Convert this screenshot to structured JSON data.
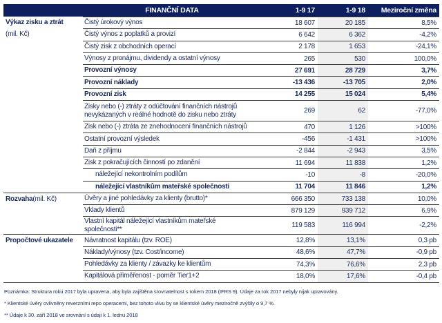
{
  "header": {
    "title": "FINANČNÍ DATA",
    "col1": "1-9 17",
    "col2": "1-9 18",
    "col3": "Meziroční změna"
  },
  "sections": [
    {
      "label": "Výkaz zisku a ztrát",
      "sublabel": "(mil. Kč)",
      "rows": [
        {
          "desc": "Čistý úrokový výnos",
          "v1": "18 607",
          "v2": "20 185",
          "v3": "8,5%"
        },
        {
          "desc": "Čistý výnos z poplatků a provizí",
          "v1": "6 642",
          "v2": "6 362",
          "v3": "-4,2%"
        },
        {
          "desc": "Čistý zisk z obchodních operací",
          "v1": "2 178",
          "v2": "1 653",
          "v3": "-24,1%"
        },
        {
          "desc": "Výnosy z pronájmu, dividendy a ostatní výnosy",
          "v1": "265",
          "v2": "530",
          "v3": "100,0%"
        },
        {
          "desc": "Provozní výnosy",
          "v1": "27 691",
          "v2": "28 729",
          "v3": "3,7%",
          "bold": true
        },
        {
          "desc": "Provozní náklady",
          "v1": "-13 436",
          "v2": "-13 705",
          "v3": "2,0%",
          "bold": true
        },
        {
          "desc": "Provozní zisk",
          "v1": "14 255",
          "v2": "15 024",
          "v3": "5,4%",
          "bold": true
        },
        {
          "desc": "Zisky nebo (-) ztráty z odúčtování finančních nástrojů\nnevykázaných v reálné hodnotě do zisku nebo ztráty",
          "v1": "269",
          "v2": "62",
          "v3": "-77,0%"
        },
        {
          "desc": "Zisk nebo (-) ztráta ze znehodnocení finančních nástrojů",
          "v1": "470",
          "v2": "1 126",
          "v3": ">100%"
        },
        {
          "desc": "Ostatní provozní výsledek",
          "v1": "-456",
          "v2": "-1 431",
          "v3": ">100%"
        },
        {
          "desc": "Daň z příjmu",
          "v1": "-2 844",
          "v2": "-2 943",
          "v3": "3,5%"
        },
        {
          "desc": "Zisk z pokračujících činností po zdanění",
          "v1": "11 694",
          "v2": "11 838",
          "v3": "1,2%"
        },
        {
          "desc": "náležející nekontrolním podílům",
          "v1": "-10",
          "v2": "-8",
          "v3": "-20,0%",
          "indent": true
        },
        {
          "desc": "náležející vlastníkům mateřské společnosti",
          "v1": "11 704",
          "v2": "11 846",
          "v3": "1,2%",
          "indent": true,
          "bold": true
        }
      ]
    },
    {
      "label": "Rozvaha",
      "label_suffix": " (mil. Kč)",
      "rows": [
        {
          "desc": "Úvěry a jiné pohledávky za klienty (brutto)*",
          "v1": "666 350",
          "v2": "733 138",
          "v3": "10,0%"
        },
        {
          "desc": "Vklady klientů",
          "v1": "879 129",
          "v2": "939 712",
          "v3": "6,9%"
        },
        {
          "desc": "Vlastní kapitál náležející vlastníkům mateřské\nspolečnosti**",
          "v1": "119 583",
          "v2": "116 994",
          "v3": "-2,2%"
        }
      ]
    },
    {
      "label": "Propočtové ukazatele",
      "rows": [
        {
          "desc": "Návratnost kapitálu (tzv. ROE)",
          "v1": "12,8%",
          "v2": "13,1%",
          "v3": "0,3 pb"
        },
        {
          "desc": "Náklady/výnosy (tzv. Cost/income)",
          "v1": "48,6%",
          "v2": "47,7%",
          "v3": "-0,9 pb"
        },
        {
          "desc": "Pohledávky za klienty / závazky ke klientům",
          "v1": "74,3%",
          "v2": "76,6%",
          "v3": "2,3 pb"
        },
        {
          "desc": "Kapitálová přiměřenost - poměr Tier1+2",
          "v1": "18,0%",
          "v2": "17,6%",
          "v3": "-0,4 pb"
        }
      ]
    }
  ],
  "notes": [
    "Poznámka: Struktura roku 2017 byla upravena, aby byla zajištěna srovnatelnost s rokem 2018 (IFRS 9). Údaje za rok 2017 nebyly nijak upravovány.",
    "* Klientské úvěry ovlivněny reverzními repo operacemi, bez tohoto vlivu by se klientské úvěry meziročně zvýšily o 9,7 %.",
    "** Údaje k 30. září 2018 ve srovnání s údaji k 1. lednu 2018"
  ]
}
